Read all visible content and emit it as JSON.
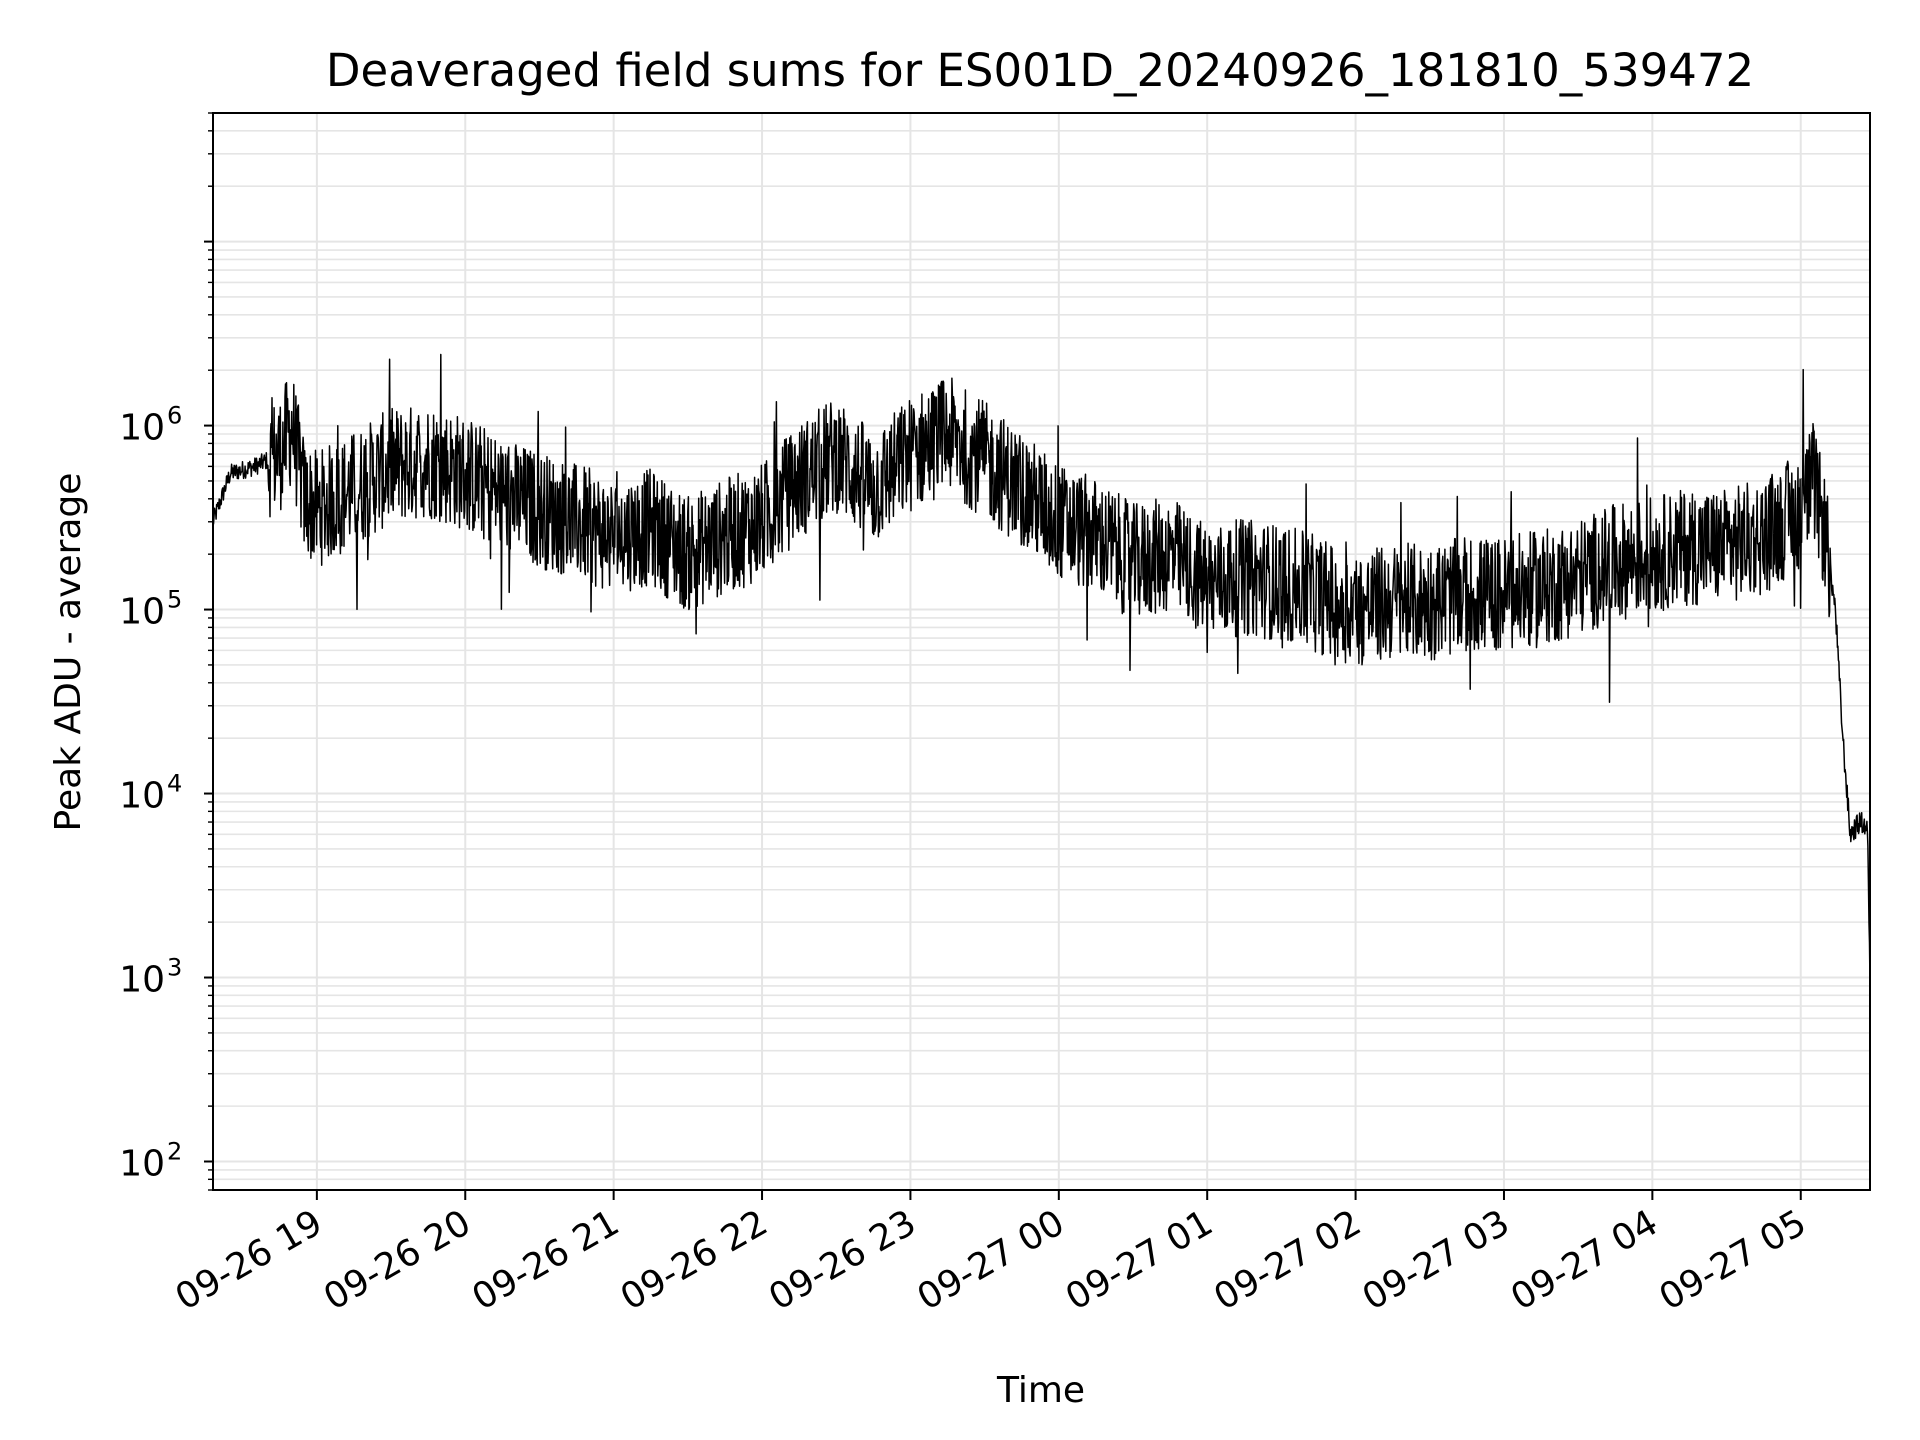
{
  "chart_data": {
    "type": "line",
    "title": "Deaveraged field sums for ES001D_20240926_181810_539472",
    "xlabel": "Time",
    "ylabel": "Peak ADU - average",
    "yscale": "log",
    "ylim": [
      70,
      50000000
    ],
    "xlim": [
      "2024-09-26 18:18:00",
      "2024-09-27 05:28:00"
    ],
    "grid": true,
    "legend": "none",
    "line_color": "#000000",
    "x_tick_labels": [
      "09-26 19",
      "09-26 20",
      "09-26 21",
      "09-26 22",
      "09-26 23",
      "09-27 00",
      "09-27 01",
      "09-27 02",
      "09-27 03",
      "09-27 04",
      "09-27 05"
    ],
    "y_tick_labels": [
      {
        "base": "10",
        "exp": "2"
      },
      {
        "base": "10",
        "exp": "3"
      },
      {
        "base": "10",
        "exp": "4"
      },
      {
        "base": "10",
        "exp": "5"
      },
      {
        "base": "10",
        "exp": "6"
      }
    ],
    "series": [
      {
        "x": [
          "2024-09-26 18:18",
          "2024-09-26 18:25",
          "2024-09-26 18:35",
          "2024-09-26 18:45",
          "2024-09-26 18:50",
          "2024-09-26 18:55",
          "2024-09-26 19:00",
          "2024-09-26 19:15",
          "2024-09-26 19:30",
          "2024-09-26 19:45",
          "2024-09-26 20:00",
          "2024-09-26 20:15",
          "2024-09-26 20:30",
          "2024-09-26 20:45",
          "2024-09-26 21:00",
          "2024-09-26 21:15",
          "2024-09-26 21:30",
          "2024-09-26 21:45",
          "2024-09-26 22:00",
          "2024-09-26 22:15",
          "2024-09-26 22:30",
          "2024-09-26 22:45",
          "2024-09-26 23:00",
          "2024-09-26 23:15",
          "2024-09-26 23:30",
          "2024-09-26 23:45",
          "2024-09-27 00:00",
          "2024-09-27 00:15",
          "2024-09-27 00:30",
          "2024-09-27 00:45",
          "2024-09-27 01:00",
          "2024-09-27 01:15",
          "2024-09-27 01:30",
          "2024-09-27 01:45",
          "2024-09-27 02:00",
          "2024-09-27 02:15",
          "2024-09-27 02:30",
          "2024-09-27 02:45",
          "2024-09-27 03:00",
          "2024-09-27 03:15",
          "2024-09-27 03:30",
          "2024-09-27 03:45",
          "2024-09-27 04:00",
          "2024-09-27 04:15",
          "2024-09-27 04:30",
          "2024-09-27 04:45",
          "2024-09-27 05:00",
          "2024-09-27 05:05",
          "2024-09-27 05:10",
          "2024-09-27 05:14",
          "2024-09-27 05:17",
          "2024-09-27 05:20",
          "2024-09-27 05:24",
          "2024-09-27 05:27",
          "2024-09-27 05:28"
        ],
        "y": [
          300000,
          550000,
          600000,
          700000,
          1000000,
          400000,
          350000,
          450000,
          600000,
          650000,
          550000,
          420000,
          350000,
          300000,
          250000,
          280000,
          200000,
          250000,
          300000,
          500000,
          700000,
          450000,
          700000,
          900000,
          650000,
          450000,
          300000,
          250000,
          180000,
          200000,
          140000,
          150000,
          140000,
          120000,
          100000,
          110000,
          110000,
          120000,
          120000,
          130000,
          150000,
          180000,
          200000,
          220000,
          220000,
          250000,
          350000,
          500000,
          250000,
          100000,
          20000,
          6000,
          7000,
          6500,
          900
        ]
      }
    ]
  }
}
